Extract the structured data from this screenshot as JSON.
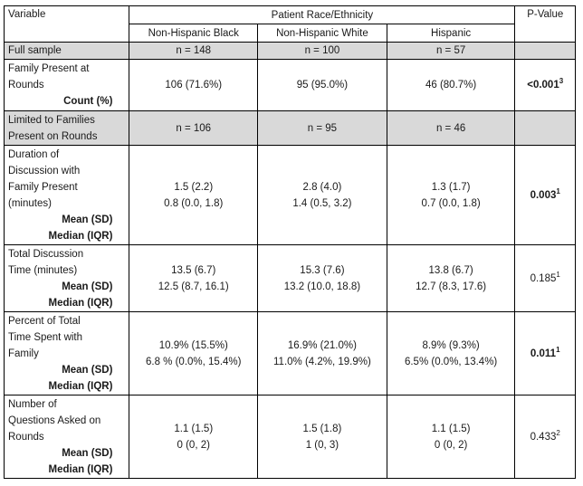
{
  "header": {
    "variable": "Variable",
    "group": "Patient Race/Ethnicity",
    "pvalue": "P-Value",
    "black": "Non-Hispanic Black",
    "white": "Non-Hispanic White",
    "hispanic": "Hispanic"
  },
  "full_sample": {
    "label": "Full sample",
    "black": "n = 148",
    "white": "n = 100",
    "hispanic": "n = 57"
  },
  "family_present": {
    "label_lines": [
      "Family Present at",
      "Rounds"
    ],
    "stat": "Count (%)",
    "black": "106 (71.6%)",
    "white": "95 (95.0%)",
    "hispanic": "46 (80.7%)",
    "p": "<0.001",
    "p_sup": "3"
  },
  "limited": {
    "label_lines": [
      "Limited to Families",
      "Present on Rounds"
    ],
    "black": "n = 106",
    "white": "n = 95",
    "hispanic": "n = 46"
  },
  "duration": {
    "label_lines": [
      "Duration of",
      "Discussion with",
      "Family Present",
      "(minutes)"
    ],
    "stat1": "Mean (SD)",
    "stat2": "Median (IQR)",
    "black1": "1.5 (2.2)",
    "black2": "0.8 (0.0, 1.8)",
    "white1": "2.8 (4.0)",
    "white2": "1.4 (0.5, 3.2)",
    "hispanic1": "1.3 (1.7)",
    "hispanic2": "0.7 (0.0, 1.8)",
    "p": "0.003",
    "p_sup": "1"
  },
  "total_time": {
    "label_lines": [
      "Total Discussion",
      "Time (minutes)"
    ],
    "stat1": "Mean (SD)",
    "stat2": "Median (IQR)",
    "black1": "13.5 (6.7)",
    "black2": "12.5 (8.7, 16.1)",
    "white1": "15.3 (7.6)",
    "white2": "13.2 (10.0, 18.8)",
    "hispanic1": "13.8 (6.7)",
    "hispanic2": "12.7 (8.3, 17.6)",
    "p": "0.185",
    "p_sup": "1"
  },
  "percent_time": {
    "label_lines": [
      "Percent of Total",
      "Time Spent with",
      "Family"
    ],
    "stat1": "Mean (SD)",
    "stat2": "Median (IQR)",
    "black1": "10.9% (15.5%)",
    "black2": "6.8 % (0.0%, 15.4%)",
    "white1": "16.9% (21.0%)",
    "white2": "11.0% (4.2%, 19.9%)",
    "hispanic1": "8.9% (9.3%)",
    "hispanic2": "6.5% (0.0%, 13.4%)",
    "p": "0.011",
    "p_sup": "1"
  },
  "questions": {
    "label_lines": [
      "Number of",
      "Questions Asked on",
      "Rounds"
    ],
    "stat1": "Mean (SD)",
    "stat2": "Median (IQR)",
    "black1": "1.1 (1.5)",
    "black2": "0 (0, 2)",
    "white1": "1.5 (1.8)",
    "white2": "1 (0, 3)",
    "hispanic1": "1.1 (1.5)",
    "hispanic2": "0 (0, 2)",
    "p": "0.433",
    "p_sup": "2"
  }
}
